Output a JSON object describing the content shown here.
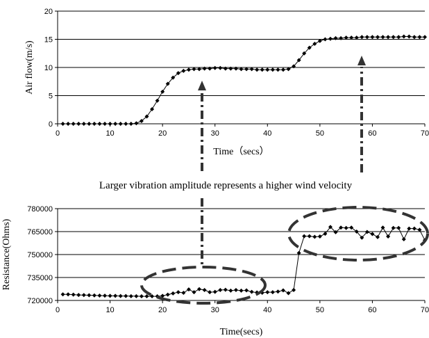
{
  "annotation": "Larger vibration amplitude represents a higher wind velocity",
  "chart_data": [
    {
      "type": "line",
      "xlabel": "Time（secs）",
      "ylabel": "Air flow(m/s)",
      "xlim": [
        0,
        70
      ],
      "ylim": [
        0,
        20
      ],
      "x_ticks": [
        "0",
        "10",
        "20",
        "30",
        "40",
        "50",
        "60",
        "70"
      ],
      "y_ticks": [
        "0",
        "5",
        "10",
        "15",
        "20"
      ],
      "grid": "horizontal",
      "marker": "diamond",
      "color": "#000000",
      "x": [
        1,
        2,
        3,
        4,
        5,
        6,
        7,
        8,
        9,
        10,
        11,
        12,
        13,
        14,
        15,
        16,
        17,
        18,
        19,
        20,
        21,
        22,
        23,
        24,
        25,
        26,
        27,
        28,
        29,
        30,
        31,
        32,
        33,
        34,
        35,
        36,
        37,
        38,
        39,
        40,
        41,
        42,
        43,
        44,
        45,
        46,
        47,
        48,
        49,
        50,
        51,
        52,
        53,
        54,
        55,
        56,
        57,
        58,
        59,
        60,
        61,
        62,
        63,
        64,
        65,
        66,
        67,
        68,
        69,
        70
      ],
      "values": [
        0,
        0,
        0,
        0,
        0,
        0,
        0,
        0,
        0,
        0,
        0,
        0,
        0,
        0,
        0.1,
        0.5,
        1.3,
        2.6,
        4.1,
        5.7,
        7.1,
        8.2,
        9.0,
        9.4,
        9.6,
        9.7,
        9.7,
        9.8,
        9.8,
        9.9,
        9.9,
        9.8,
        9.8,
        9.8,
        9.7,
        9.7,
        9.7,
        9.6,
        9.6,
        9.6,
        9.6,
        9.6,
        9.6,
        9.7,
        10.2,
        11.3,
        12.5,
        13.5,
        14.2,
        14.7,
        15.0,
        15.1,
        15.2,
        15.2,
        15.3,
        15.3,
        15.3,
        15.4,
        15.4,
        15.4,
        15.4,
        15.4,
        15.4,
        15.4,
        15.4,
        15.5,
        15.5,
        15.4,
        15.4,
        15.4
      ]
    },
    {
      "type": "line",
      "xlabel": "Time(secs)",
      "ylabel": "Resistance(Ohms)",
      "xlim": [
        0,
        70
      ],
      "ylim": [
        720000,
        780000
      ],
      "x_ticks": [
        "0",
        "10",
        "20",
        "30",
        "40",
        "50",
        "60",
        "70"
      ],
      "y_ticks": [
        "720000",
        "735000",
        "750000",
        "765000",
        "780000"
      ],
      "grid": "horizontal",
      "marker": "diamond",
      "color": "#000000",
      "x": [
        1,
        2,
        3,
        4,
        5,
        6,
        7,
        8,
        9,
        10,
        11,
        12,
        13,
        14,
        15,
        16,
        17,
        18,
        19,
        20,
        21,
        22,
        23,
        24,
        25,
        26,
        27,
        28,
        29,
        30,
        31,
        32,
        33,
        34,
        35,
        36,
        37,
        38,
        39,
        40,
        41,
        42,
        43,
        44,
        45,
        46,
        47,
        48,
        49,
        50,
        51,
        52,
        53,
        54,
        55,
        56,
        57,
        58,
        59,
        60,
        61,
        62,
        63,
        64,
        65,
        66,
        67,
        68,
        69,
        70
      ],
      "values": [
        724000,
        724000,
        723800,
        723600,
        723500,
        723400,
        723300,
        723200,
        723100,
        723000,
        723000,
        722900,
        722900,
        722800,
        722800,
        722700,
        722700,
        722700,
        722700,
        723000,
        723800,
        724600,
        725400,
        725000,
        727200,
        725400,
        727400,
        726800,
        725400,
        725600,
        726800,
        727000,
        726400,
        726800,
        726400,
        726600,
        725600,
        725200,
        725000,
        725400,
        725400,
        725800,
        726600,
        724800,
        726800,
        751000,
        762000,
        762000,
        761600,
        761800,
        763600,
        768000,
        764600,
        767600,
        767400,
        767600,
        765000,
        761000,
        764800,
        763400,
        761400,
        767600,
        761800,
        767400,
        767400,
        760000,
        767000,
        767000,
        766200,
        759400
      ]
    }
  ]
}
